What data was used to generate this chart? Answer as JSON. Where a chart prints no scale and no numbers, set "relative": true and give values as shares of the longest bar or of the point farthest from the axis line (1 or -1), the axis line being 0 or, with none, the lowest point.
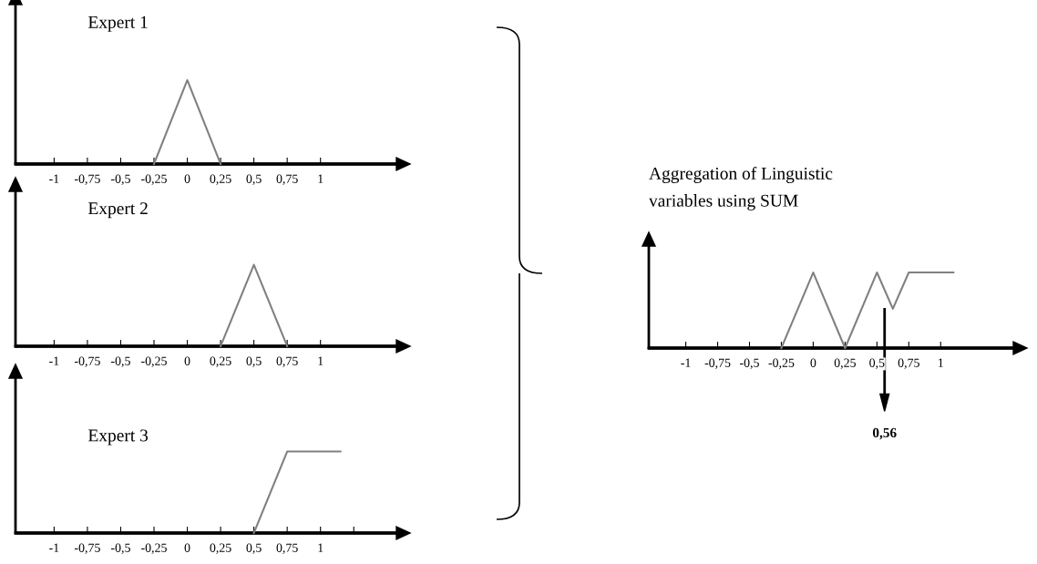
{
  "chart_data": [
    {
      "type": "line",
      "title": "Expert 1",
      "relative": true,
      "x": [
        -0.25,
        0,
        0.25
      ],
      "values": [
        0,
        1,
        0
      ],
      "color": "#808080",
      "xlim": [
        -1.29,
        1.57
      ],
      "xticks": [
        {
          "value": -1,
          "label": "-1"
        },
        {
          "value": -0.75,
          "label": "-0,75"
        },
        {
          "value": -0.5,
          "label": "-0,5"
        },
        {
          "value": -0.25,
          "label": "-0,25"
        },
        {
          "value": 0,
          "label": "0"
        },
        {
          "value": 0.25,
          "label": "0,25"
        },
        {
          "value": 0.5,
          "label": "0,5"
        },
        {
          "value": 0.75,
          "label": "0,75"
        },
        {
          "value": 1,
          "label": "1"
        }
      ]
    },
    {
      "type": "line",
      "title": "Expert 2",
      "relative": true,
      "x": [
        0.25,
        0.5,
        0.75
      ],
      "values": [
        0,
        1,
        0
      ],
      "color": "#808080",
      "xlim": [
        -1.29,
        1.57
      ],
      "xticks": [
        {
          "value": -1,
          "label": "-1"
        },
        {
          "value": -0.75,
          "label": "-0,75"
        },
        {
          "value": -0.5,
          "label": "-0,5"
        },
        {
          "value": -0.25,
          "label": "-0,25"
        },
        {
          "value": 0,
          "label": "0"
        },
        {
          "value": 0.25,
          "label": "0,25"
        },
        {
          "value": 0.5,
          "label": "0,5"
        },
        {
          "value": 0.75,
          "label": "0,75"
        },
        {
          "value": 1,
          "label": "1"
        }
      ]
    },
    {
      "type": "line",
      "title": "Expert 3",
      "relative": true,
      "x": [
        0.5,
        0.75,
        1.15
      ],
      "values": [
        0,
        1,
        1
      ],
      "color": "#808080",
      "xlim": [
        -1.29,
        1.57
      ],
      "xticks": [
        {
          "value": -1,
          "label": "-1"
        },
        {
          "value": -0.75,
          "label": "-0,75"
        },
        {
          "value": -0.5,
          "label": "-0,5"
        },
        {
          "value": -0.25,
          "label": "-0,25"
        },
        {
          "value": 0,
          "label": "0"
        },
        {
          "value": 0.25,
          "label": "0,25"
        },
        {
          "value": 0.5,
          "label": "0,5"
        },
        {
          "value": 0.75,
          "label": "0,75"
        },
        {
          "value": 1,
          "label": "1"
        },
        {
          "value": 1.25,
          "label": null
        }
      ]
    },
    {
      "type": "line",
      "title": "Aggregation of Linguistic\nvariables using SUM",
      "relative": true,
      "x": [
        -0.25,
        0,
        0.25,
        0.5,
        0.625,
        0.75,
        1.1
      ],
      "values": [
        0,
        1,
        0,
        1,
        0.52,
        1,
        1
      ],
      "color": "#808080",
      "xlim": [
        -1.29,
        1.57
      ],
      "xticks": [
        {
          "value": -1,
          "label": "-1"
        },
        {
          "value": -0.75,
          "label": "-0,75"
        },
        {
          "value": -0.5,
          "label": "-0,5"
        },
        {
          "value": -0.25,
          "label": "-0,25"
        },
        {
          "value": 0,
          "label": "0"
        },
        {
          "value": 0.25,
          "label": "0,25"
        },
        {
          "value": 0.5,
          "label": "0,5"
        },
        {
          "value": 0.75,
          "label": "0,75"
        },
        {
          "value": 1,
          "label": "1"
        }
      ],
      "ref_lines": [
        {
          "axis": "x",
          "value": 0.56,
          "label": "0,56",
          "color": "#000000"
        }
      ]
    }
  ]
}
